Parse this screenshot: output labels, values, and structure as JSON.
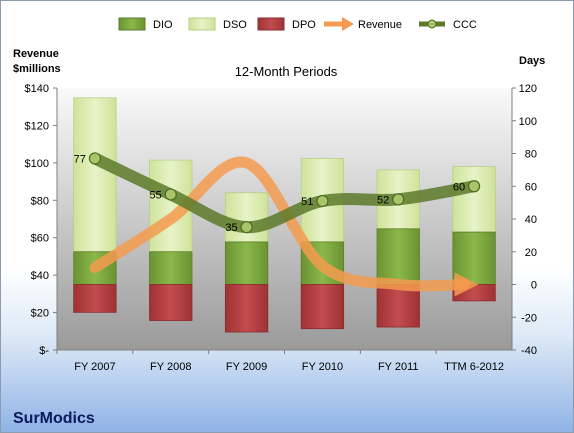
{
  "chart_data": {
    "type": "bar",
    "subtitle": "12-Month Periods",
    "company": "SurModics",
    "categories": [
      "FY 2007",
      "FY 2008",
      "FY 2009",
      "FY 2010",
      "FY 2011",
      "TTM 6-2012"
    ],
    "left_axis": {
      "title_line1": "Revenue",
      "title_line2": "$millions",
      "ylim": [
        0,
        140
      ],
      "ticks": [
        0,
        20,
        40,
        60,
        80,
        100,
        120,
        140
      ],
      "tick_labels": [
        "$-",
        "$20",
        "$40",
        "$60",
        "$80",
        "$100",
        "$120",
        "$140"
      ]
    },
    "right_axis": {
      "title": "Days",
      "ylim": [
        -40,
        120
      ],
      "ticks": [
        -40,
        -20,
        0,
        20,
        40,
        60,
        80,
        100,
        120
      ],
      "tick_labels": [
        "-40",
        "-20",
        "0",
        "20",
        "40",
        "60",
        "80",
        "100",
        "120"
      ]
    },
    "legend": {
      "position": "top",
      "entries": [
        {
          "key": "DIO",
          "label": "DIO"
        },
        {
          "key": "DSO",
          "label": "DSO"
        },
        {
          "key": "DPO",
          "label": "DPO"
        },
        {
          "key": "Revenue",
          "label": "Revenue"
        },
        {
          "key": "CCC",
          "label": "CCC"
        }
      ]
    },
    "colors": {
      "DIO": "#77a33a",
      "DSO": "#dcebb4",
      "DPO": "#b33d3f",
      "Revenue": "#f59b4f",
      "CCC": "#5c7a2a"
    },
    "series": [
      {
        "name": "DIO",
        "axis": "right",
        "values": [
          20,
          20,
          26,
          26,
          34,
          32
        ]
      },
      {
        "name": "DSO",
        "axis": "right",
        "values": [
          94,
          56,
          30,
          51,
          36,
          40
        ]
      },
      {
        "name": "DPO",
        "axis": "right",
        "values": [
          -17,
          -22,
          -29,
          -27,
          -26,
          -10
        ]
      },
      {
        "name": "Revenue",
        "axis": "left",
        "values": [
          44,
          70,
          100,
          45,
          35,
          35
        ]
      },
      {
        "name": "CCC",
        "axis": "right",
        "values": [
          77,
          55,
          35,
          51,
          52,
          60
        ]
      }
    ],
    "data_labels": [
      "77",
      "55",
      "35",
      "51",
      "52",
      "60"
    ],
    "grid": false
  }
}
